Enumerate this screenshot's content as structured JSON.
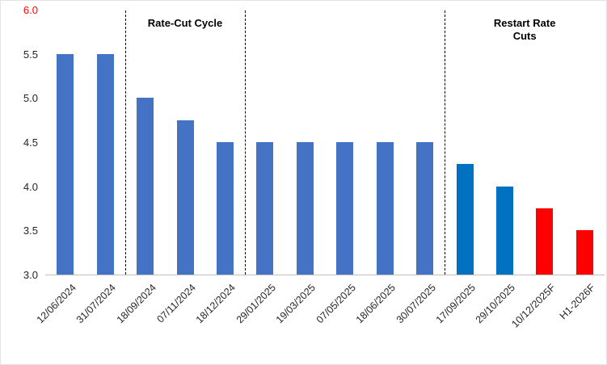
{
  "chart_data": {
    "type": "bar",
    "title": "",
    "xlabel": "",
    "ylabel": "",
    "grid": false,
    "legend": null,
    "ylim": [
      3.0,
      6.0
    ],
    "categories": [
      "12/06/2024",
      "31/07/2024",
      "18/09/2024",
      "07/11/2024",
      "18/12/2024",
      "29/01/2025",
      "19/03/2025",
      "07/05/2025",
      "18/06/2025",
      "30/07/2025",
      "17/09/2025",
      "29/10/2025",
      "10/12/2025F",
      "H1-2026F"
    ],
    "values": [
      5.5,
      5.5,
      5.0,
      4.75,
      4.5,
      4.5,
      4.5,
      4.5,
      4.5,
      4.5,
      4.25,
      4.0,
      3.75,
      3.5
    ],
    "bar_colors": [
      "#4472C4",
      "#4472C4",
      "#4472C4",
      "#4472C4",
      "#4472C4",
      "#4472C4",
      "#4472C4",
      "#4472C4",
      "#4472C4",
      "#4472C4",
      "#0070C0",
      "#0070C0",
      "#FF0000",
      "#FF0000"
    ],
    "yticks": [
      {
        "label": "6.0",
        "value": 6.0,
        "color": "#FF0000"
      },
      {
        "label": "5.5",
        "value": 5.5,
        "color": "#262626"
      },
      {
        "label": "5.0",
        "value": 5.0,
        "color": "#262626"
      },
      {
        "label": "4.5",
        "value": 4.5,
        "color": "#262626"
      },
      {
        "label": "4.0",
        "value": 4.0,
        "color": "#262626"
      },
      {
        "label": "3.5",
        "value": 3.5,
        "color": "#262626"
      },
      {
        "label": "3.0",
        "value": 3.0,
        "color": "#262626"
      }
    ],
    "separators": [
      {
        "after_category_index": 1
      },
      {
        "after_category_index": 4
      },
      {
        "after_category_index": 9
      }
    ],
    "annotations": [
      {
        "text": "Rate-Cut Cycle",
        "between": [
          "separator-0",
          "separator-1"
        ]
      },
      {
        "text": "Restart Rate Cuts",
        "between": [
          "separator-2",
          "plot-right-edge"
        ]
      }
    ],
    "colors": {
      "main_series": "#4472C4",
      "recent_cuts": "#0070C0",
      "forecast": "#FF0000",
      "axis_line": "#BFBFBF",
      "separator_line": "#000000"
    }
  }
}
